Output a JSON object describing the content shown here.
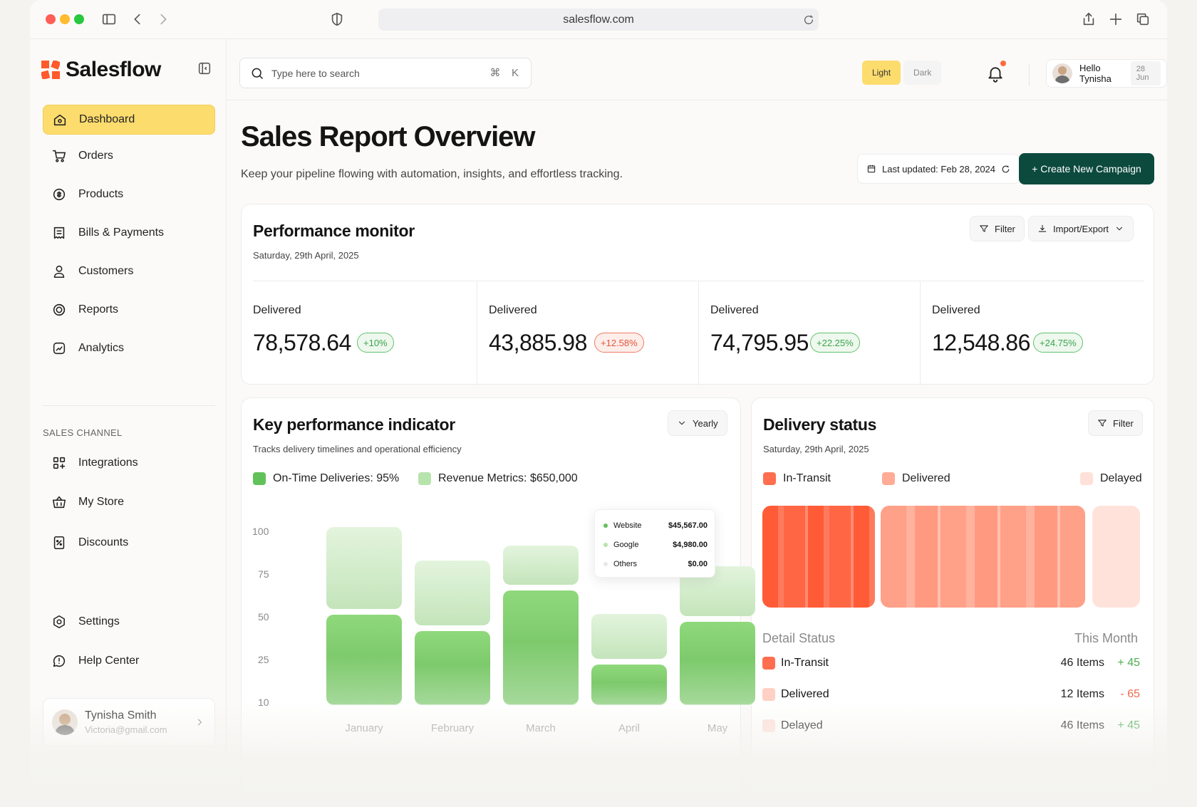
{
  "browser": {
    "url": "salesflow.com"
  },
  "brand": {
    "name": "Salesflow"
  },
  "sidebar": {
    "items": [
      {
        "label": "Dashboard",
        "icon": "home-icon",
        "active": true
      },
      {
        "label": "Orders",
        "icon": "cart-icon"
      },
      {
        "label": "Products",
        "icon": "products-icon"
      },
      {
        "label": "Bills & Payments",
        "icon": "receipt-icon"
      },
      {
        "label": "Customers",
        "icon": "user-icon"
      },
      {
        "label": "Reports",
        "icon": "reports-icon"
      },
      {
        "label": "Analytics",
        "icon": "analytics-icon"
      }
    ],
    "section_label": "SALES CHANNEL",
    "channel_items": [
      {
        "label": "Integrations",
        "icon": "grid-plus-icon"
      },
      {
        "label": "My Store",
        "icon": "store-basket-icon"
      },
      {
        "label": "Discounts",
        "icon": "discount-icon"
      }
    ],
    "bottom_items": [
      {
        "label": "Settings",
        "icon": "gear-icon"
      },
      {
        "label": "Help Center",
        "icon": "help-icon"
      }
    ],
    "user": {
      "name": "Tynisha Smith",
      "email": "Victoria@gmail.com"
    }
  },
  "topbar": {
    "search_placeholder": "Type here to search",
    "shortcut_keys": [
      "⌘",
      "K"
    ],
    "theme_options": [
      "Light",
      "Dark"
    ],
    "theme_selected": "Light",
    "greeting": "Hello Tynisha",
    "date": "28 Jun"
  },
  "header": {
    "title": "Sales Report Overview",
    "subtitle": "Keep your pipeline flowing with automation, insights, and effortless tracking.",
    "last_updated": "Last updated: Feb 28, 2024",
    "cta_label": "+ Create New Campaign"
  },
  "performance": {
    "title": "Performance monitor",
    "date": "Saturday, 29th April, 2025",
    "filter_label": "Filter",
    "import_label": "Import/Export",
    "stats": [
      {
        "label": "Delivered",
        "value": "78,578.64",
        "change": "+10%",
        "trend": "up"
      },
      {
        "label": "Delivered",
        "value": "43,885.98",
        "change": "+12.58%",
        "trend": "down"
      },
      {
        "label": "Delivered",
        "value": "74,795.95",
        "change": "+22.25%",
        "trend": "up"
      },
      {
        "label": "Delivered",
        "value": "12,548.86",
        "change": "+24.75%",
        "trend": "up"
      }
    ]
  },
  "kpi": {
    "title": "Key performance indicator",
    "subtitle": "Tracks delivery timelines and operational efficiency",
    "period_label": "Yearly",
    "legend": [
      {
        "label": "On-Time Deliveries: 95%",
        "color": "#62c25a"
      },
      {
        "label": "Revenue Metrics: $650,000",
        "color": "#b7e3ad"
      }
    ],
    "tooltip": [
      {
        "label": "Website",
        "value": "$45,567.00",
        "color": "#62c25a"
      },
      {
        "label": "Google",
        "value": "$4,980.00",
        "color": "#b7e3ad"
      },
      {
        "label": "Others",
        "value": "$0.00",
        "color": "#eeeeee"
      }
    ]
  },
  "chart_data": {
    "type": "bar",
    "stacked": true,
    "categories": [
      "January",
      "February",
      "March",
      "April",
      "May"
    ],
    "y_ticks": [
      100,
      75,
      50,
      25,
      10
    ],
    "ylim": [
      0,
      100
    ],
    "series": [
      {
        "name": "On-Time Deliveries",
        "values": [
          49,
          40,
          62,
          22,
          45
        ],
        "color": "#7fd06d"
      },
      {
        "name": "Revenue Metrics",
        "values": [
          44,
          35,
          21,
          24,
          27
        ],
        "color": "#cdebc5"
      }
    ]
  },
  "delivery": {
    "title": "Delivery status",
    "date": "Saturday, 29th April, 2025",
    "filter_label": "Filter",
    "legend": [
      {
        "label": "In-Transit",
        "color": "#ff6f4f"
      },
      {
        "label": "Delivered",
        "color": "#ffab95"
      },
      {
        "label": "Delayed",
        "color": "#ffe1d9"
      }
    ],
    "bar_shares": [
      0.3,
      0.55,
      0.13
    ],
    "detail_title": "Detail Status",
    "detail_period": "This Month",
    "details": [
      {
        "label": "In-Transit",
        "items": "46 Items",
        "delta": "+ 45",
        "delta_color": "#4caf50",
        "color": "#ff6f4f"
      },
      {
        "label": "Delivered",
        "items": "12 Items",
        "delta": "- 65",
        "delta_color": "#ef6a4d",
        "color": "#ffd0c4"
      },
      {
        "label": "Delayed",
        "items": "46 Items",
        "delta": "+ 45",
        "delta_color": "#4caf50",
        "color": "#ffe1d9"
      }
    ]
  }
}
